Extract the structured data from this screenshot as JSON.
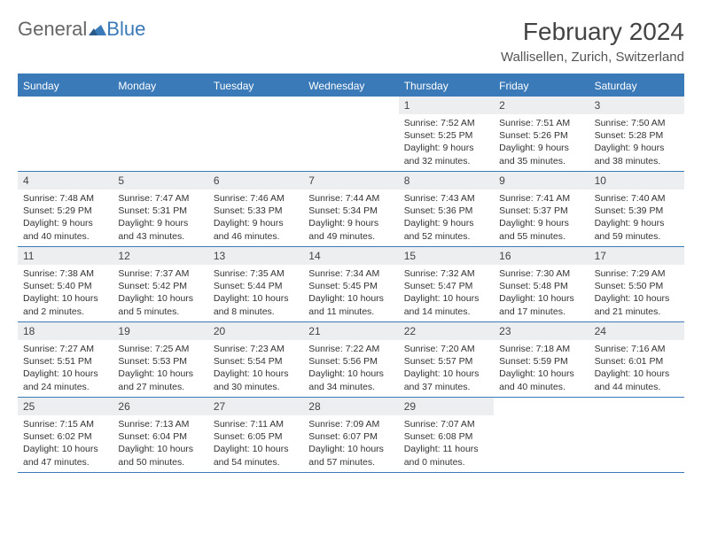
{
  "logo": {
    "text1": "General",
    "text2": "Blue"
  },
  "title": "February 2024",
  "subtitle": "Wallisellen, Zurich, Switzerland",
  "colors": {
    "accent": "#3a7ab8",
    "header_bg": "#3a7ab8",
    "daynum_bg": "#eceef0"
  },
  "dayHeaders": [
    "Sunday",
    "Monday",
    "Tuesday",
    "Wednesday",
    "Thursday",
    "Friday",
    "Saturday"
  ],
  "weeks": [
    [
      null,
      null,
      null,
      null,
      {
        "n": "1",
        "sr": "7:52 AM",
        "ss": "5:25 PM",
        "dl": "9 hours and 32 minutes."
      },
      {
        "n": "2",
        "sr": "7:51 AM",
        "ss": "5:26 PM",
        "dl": "9 hours and 35 minutes."
      },
      {
        "n": "3",
        "sr": "7:50 AM",
        "ss": "5:28 PM",
        "dl": "9 hours and 38 minutes."
      }
    ],
    [
      {
        "n": "4",
        "sr": "7:48 AM",
        "ss": "5:29 PM",
        "dl": "9 hours and 40 minutes."
      },
      {
        "n": "5",
        "sr": "7:47 AM",
        "ss": "5:31 PM",
        "dl": "9 hours and 43 minutes."
      },
      {
        "n": "6",
        "sr": "7:46 AM",
        "ss": "5:33 PM",
        "dl": "9 hours and 46 minutes."
      },
      {
        "n": "7",
        "sr": "7:44 AM",
        "ss": "5:34 PM",
        "dl": "9 hours and 49 minutes."
      },
      {
        "n": "8",
        "sr": "7:43 AM",
        "ss": "5:36 PM",
        "dl": "9 hours and 52 minutes."
      },
      {
        "n": "9",
        "sr": "7:41 AM",
        "ss": "5:37 PM",
        "dl": "9 hours and 55 minutes."
      },
      {
        "n": "10",
        "sr": "7:40 AM",
        "ss": "5:39 PM",
        "dl": "9 hours and 59 minutes."
      }
    ],
    [
      {
        "n": "11",
        "sr": "7:38 AM",
        "ss": "5:40 PM",
        "dl": "10 hours and 2 minutes."
      },
      {
        "n": "12",
        "sr": "7:37 AM",
        "ss": "5:42 PM",
        "dl": "10 hours and 5 minutes."
      },
      {
        "n": "13",
        "sr": "7:35 AM",
        "ss": "5:44 PM",
        "dl": "10 hours and 8 minutes."
      },
      {
        "n": "14",
        "sr": "7:34 AM",
        "ss": "5:45 PM",
        "dl": "10 hours and 11 minutes."
      },
      {
        "n": "15",
        "sr": "7:32 AM",
        "ss": "5:47 PM",
        "dl": "10 hours and 14 minutes."
      },
      {
        "n": "16",
        "sr": "7:30 AM",
        "ss": "5:48 PM",
        "dl": "10 hours and 17 minutes."
      },
      {
        "n": "17",
        "sr": "7:29 AM",
        "ss": "5:50 PM",
        "dl": "10 hours and 21 minutes."
      }
    ],
    [
      {
        "n": "18",
        "sr": "7:27 AM",
        "ss": "5:51 PM",
        "dl": "10 hours and 24 minutes."
      },
      {
        "n": "19",
        "sr": "7:25 AM",
        "ss": "5:53 PM",
        "dl": "10 hours and 27 minutes."
      },
      {
        "n": "20",
        "sr": "7:23 AM",
        "ss": "5:54 PM",
        "dl": "10 hours and 30 minutes."
      },
      {
        "n": "21",
        "sr": "7:22 AM",
        "ss": "5:56 PM",
        "dl": "10 hours and 34 minutes."
      },
      {
        "n": "22",
        "sr": "7:20 AM",
        "ss": "5:57 PM",
        "dl": "10 hours and 37 minutes."
      },
      {
        "n": "23",
        "sr": "7:18 AM",
        "ss": "5:59 PM",
        "dl": "10 hours and 40 minutes."
      },
      {
        "n": "24",
        "sr": "7:16 AM",
        "ss": "6:01 PM",
        "dl": "10 hours and 44 minutes."
      }
    ],
    [
      {
        "n": "25",
        "sr": "7:15 AM",
        "ss": "6:02 PM",
        "dl": "10 hours and 47 minutes."
      },
      {
        "n": "26",
        "sr": "7:13 AM",
        "ss": "6:04 PM",
        "dl": "10 hours and 50 minutes."
      },
      {
        "n": "27",
        "sr": "7:11 AM",
        "ss": "6:05 PM",
        "dl": "10 hours and 54 minutes."
      },
      {
        "n": "28",
        "sr": "7:09 AM",
        "ss": "6:07 PM",
        "dl": "10 hours and 57 minutes."
      },
      {
        "n": "29",
        "sr": "7:07 AM",
        "ss": "6:08 PM",
        "dl": "11 hours and 0 minutes."
      },
      null,
      null
    ]
  ],
  "labels": {
    "sunrise": "Sunrise: ",
    "sunset": "Sunset: ",
    "daylight": "Daylight: "
  }
}
